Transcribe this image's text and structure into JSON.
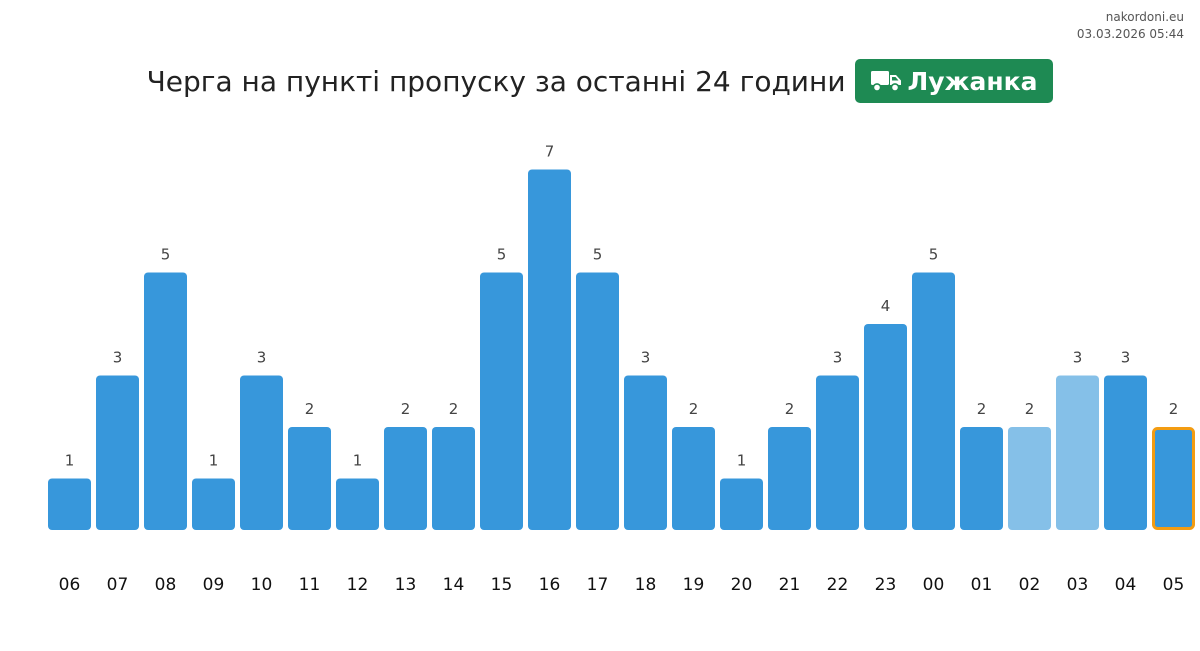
{
  "source": {
    "site": "nakordoni.eu",
    "timestamp": "03.03.2026 05:44"
  },
  "header": {
    "title": "Черга на пункті пропуску за останні 24 години",
    "checkpoint": "Лужанка",
    "checkpoint_icon": "truck-icon",
    "checkpoint_color": "#1e8a53"
  },
  "chart_data": {
    "type": "bar",
    "categories": [
      "06",
      "07",
      "08",
      "09",
      "10",
      "11",
      "12",
      "13",
      "14",
      "15",
      "16",
      "17",
      "18",
      "19",
      "20",
      "21",
      "22",
      "23",
      "00",
      "01",
      "02",
      "03",
      "04",
      "05"
    ],
    "values": [
      1,
      3,
      5,
      1,
      3,
      2,
      1,
      2,
      2,
      5,
      7,
      5,
      3,
      2,
      1,
      2,
      3,
      4,
      5,
      2,
      2,
      3,
      3,
      2
    ],
    "bar_styles": [
      "normal",
      "normal",
      "normal",
      "normal",
      "normal",
      "normal",
      "normal",
      "normal",
      "normal",
      "normal",
      "normal",
      "normal",
      "normal",
      "normal",
      "normal",
      "normal",
      "normal",
      "normal",
      "normal",
      "normal",
      "light",
      "light",
      "normal",
      "current"
    ],
    "colors": {
      "normal": "#3797db",
      "light": "#85c0e8",
      "current_outline": "#f39c12"
    },
    "ylim": [
      0,
      7
    ],
    "grid": false,
    "legend": "none",
    "title": "",
    "xlabel": "",
    "ylabel": ""
  }
}
